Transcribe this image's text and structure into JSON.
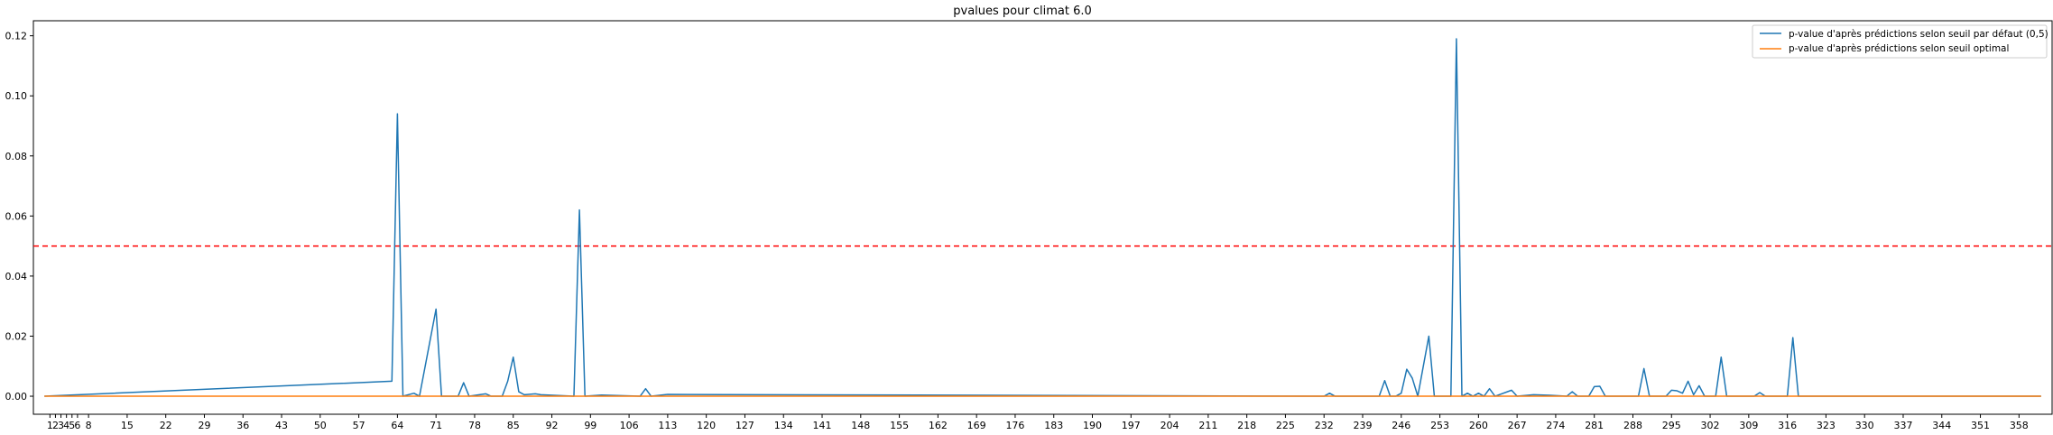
{
  "chart_data": {
    "type": "line",
    "title": "pvalues pour climat 6.0",
    "xlabel": "",
    "ylabel": "",
    "xlim": [
      -2,
      364
    ],
    "ylim": [
      -0.006,
      0.125
    ],
    "x_ticks": [
      1,
      2,
      3,
      4,
      5,
      6,
      8,
      15,
      22,
      29,
      36,
      43,
      50,
      57,
      64,
      71,
      78,
      85,
      92,
      99,
      106,
      113,
      120,
      127,
      134,
      141,
      148,
      155,
      162,
      169,
      176,
      183,
      190,
      197,
      204,
      211,
      218,
      225,
      232,
      239,
      246,
      253,
      260,
      267,
      274,
      281,
      288,
      295,
      302,
      309,
      316,
      323,
      330,
      337,
      344,
      351,
      358
    ],
    "y_ticks": [
      "0.00",
      "0.02",
      "0.04",
      "0.06",
      "0.08",
      "0.10",
      "0.12"
    ],
    "y_tick_values": [
      0,
      0.02,
      0.04,
      0.06,
      0.08,
      0.1,
      0.12
    ],
    "threshold": {
      "value": 0.05,
      "color": "#ff0000",
      "style": "dashed"
    },
    "legend_position": "top-right",
    "x_max": 362,
    "series": [
      {
        "name": "p-value d'après prédictions selon seuil par défaut (0,5)",
        "color": "#1f77b4",
        "spikes": [
          [
            63,
            0.005
          ],
          [
            64,
            0.094
          ],
          [
            65,
            0.0
          ],
          [
            67,
            0.001
          ],
          [
            68,
            0.0
          ],
          [
            71,
            0.029
          ],
          [
            72,
            0.0
          ],
          [
            75,
            0.0
          ],
          [
            76,
            0.0045
          ],
          [
            77,
            0.0
          ],
          [
            80,
            0.0008
          ],
          [
            81,
            0.0
          ],
          [
            83,
            0.0
          ],
          [
            84,
            0.005
          ],
          [
            85,
            0.013
          ],
          [
            86,
            0.0015
          ],
          [
            87,
            0.0005
          ],
          [
            89,
            0.0008
          ],
          [
            90,
            0.0005
          ],
          [
            96,
            0.0
          ],
          [
            97,
            0.062
          ],
          [
            98,
            0.0
          ],
          [
            101,
            0.0004
          ],
          [
            108,
            0.0
          ],
          [
            109,
            0.0025
          ],
          [
            110,
            0.0
          ],
          [
            113,
            0.0006
          ],
          [
            232,
            0.0
          ],
          [
            233,
            0.001
          ],
          [
            234,
            0.0
          ],
          [
            242,
            0.0
          ],
          [
            243,
            0.0052
          ],
          [
            244,
            0.0
          ],
          [
            245,
            0.0
          ],
          [
            246,
            0.001
          ],
          [
            247,
            0.009
          ],
          [
            248,
            0.006
          ],
          [
            249,
            0.0
          ],
          [
            251,
            0.02
          ],
          [
            252,
            0.0
          ],
          [
            255,
            0.0
          ],
          [
            256,
            0.119
          ],
          [
            257,
            0.0
          ],
          [
            258,
            0.001
          ],
          [
            259,
            0.0
          ],
          [
            260,
            0.001
          ],
          [
            261,
            0.0
          ],
          [
            262,
            0.0025
          ],
          [
            263,
            0.0
          ],
          [
            266,
            0.002
          ],
          [
            267,
            0.0
          ],
          [
            270,
            0.0005
          ],
          [
            273,
            0.0003
          ],
          [
            276,
            0.0
          ],
          [
            277,
            0.0015
          ],
          [
            278,
            0.0
          ],
          [
            280,
            0.0
          ],
          [
            281,
            0.0032
          ],
          [
            282,
            0.0033
          ],
          [
            283,
            0.0
          ],
          [
            289,
            0.0
          ],
          [
            290,
            0.0092
          ],
          [
            291,
            0.0
          ],
          [
            294,
            0.0
          ],
          [
            295,
            0.002
          ],
          [
            296,
            0.0018
          ],
          [
            297,
            0.001
          ],
          [
            298,
            0.005
          ],
          [
            299,
            0.0005
          ],
          [
            300,
            0.0035
          ],
          [
            301,
            0.0
          ],
          [
            302,
            0.0
          ],
          [
            303,
            0.0
          ],
          [
            304,
            0.013
          ],
          [
            305,
            0.0
          ],
          [
            310,
            0.0
          ],
          [
            311,
            0.0012
          ],
          [
            312,
            0.0
          ],
          [
            316,
            0.0
          ],
          [
            317,
            0.0195
          ],
          [
            318,
            0.0
          ]
        ]
      },
      {
        "name": "p-value d'après prédictions selon seuil optimal",
        "color": "#ff7f0e",
        "spikes": []
      }
    ]
  }
}
